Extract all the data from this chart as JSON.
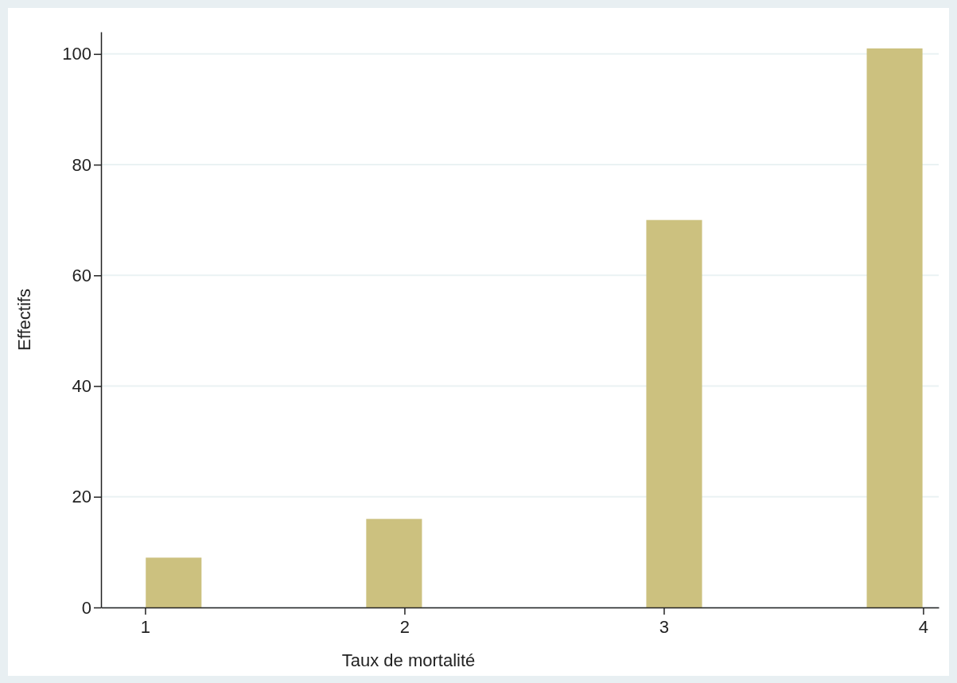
{
  "chart_data": {
    "type": "bar",
    "xlabel": "Taux de mortalité",
    "ylabel": "Effectifs",
    "x": [
      1.11,
      1.96,
      3.04,
      3.89
    ],
    "values": [
      9,
      16,
      70,
      101
    ],
    "color": "#ccc17f",
    "xlim": [
      0.83,
      4.06
    ],
    "xticks": [
      1,
      2,
      3,
      4
    ],
    "ylim": [
      0,
      104
    ],
    "yticks": [
      0,
      20,
      40,
      60,
      80,
      100
    ],
    "grid": "y"
  }
}
